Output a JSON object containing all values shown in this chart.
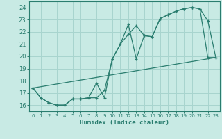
{
  "xlabel": "Humidex (Indice chaleur)",
  "xlim": [
    -0.5,
    23.5
  ],
  "ylim": [
    15.5,
    24.5
  ],
  "yticks": [
    16,
    17,
    18,
    19,
    20,
    21,
    22,
    23,
    24
  ],
  "xticks": [
    0,
    1,
    2,
    3,
    4,
    5,
    6,
    7,
    8,
    9,
    10,
    11,
    12,
    13,
    14,
    15,
    16,
    17,
    18,
    19,
    20,
    21,
    22,
    23
  ],
  "background_color": "#c8eae4",
  "grid_color": "#a8d4ce",
  "line_color": "#2a7d6f",
  "line1_x": [
    0,
    1,
    2,
    3,
    4,
    5,
    6,
    7,
    8,
    9,
    10,
    11,
    12,
    13,
    14,
    15,
    16,
    17,
    18,
    19,
    20,
    21,
    22,
    23
  ],
  "line1_y": [
    17.4,
    16.6,
    16.2,
    16.0,
    16.0,
    16.5,
    16.5,
    16.6,
    16.6,
    17.2,
    19.8,
    21.0,
    21.8,
    22.5,
    21.7,
    21.6,
    23.1,
    23.4,
    23.7,
    23.9,
    24.0,
    23.9,
    22.9,
    19.9
  ],
  "line2_x": [
    0,
    1,
    2,
    3,
    4,
    5,
    6,
    7,
    8,
    9,
    10,
    11,
    12,
    13,
    14,
    15,
    16,
    17,
    18,
    19,
    20,
    21,
    22,
    23
  ],
  "line2_y": [
    17.4,
    16.6,
    16.2,
    16.0,
    16.0,
    16.5,
    16.5,
    16.6,
    17.8,
    16.6,
    19.8,
    21.0,
    22.6,
    19.8,
    21.7,
    21.6,
    23.1,
    23.4,
    23.7,
    23.9,
    24.0,
    23.9,
    19.9,
    19.9
  ],
  "line3_x": [
    0,
    23
  ],
  "line3_y": [
    17.4,
    19.9
  ]
}
